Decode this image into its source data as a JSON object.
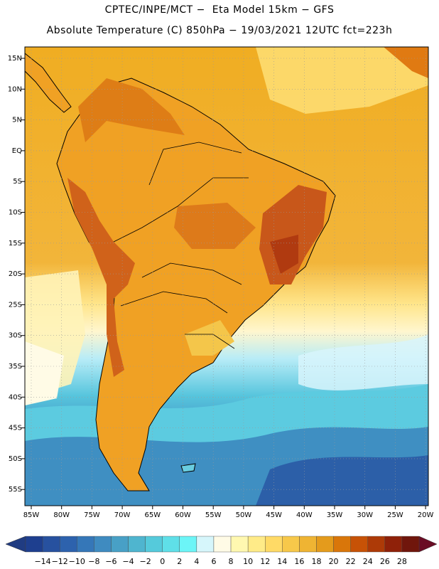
{
  "header": {
    "line1": "CPTEC/INPE/MCT −  Eta Model 15km − GFS",
    "line2": "Absolute Temperature (C) 850hPa − 19/03/2021 12UTC fct=223h"
  },
  "map": {
    "region": "South America",
    "variable": "Absolute Temperature (C) 850hPa",
    "lat_labels": [
      "15N",
      "10N",
      "5N",
      "EQ",
      "5S",
      "10S",
      "15S",
      "20S",
      "25S",
      "30S",
      "35S",
      "40S",
      "45S",
      "50S",
      "55S"
    ],
    "lon_labels": [
      "85W",
      "80W",
      "75W",
      "70W",
      "65W",
      "60W",
      "55W",
      "50W",
      "45W",
      "40W",
      "35W",
      "30W",
      "25W",
      "20W"
    ]
  },
  "colorbar": {
    "ticks": [
      "−14",
      "−12",
      "−10",
      "−8",
      "−6",
      "−4",
      "−2",
      "0",
      "2",
      "4",
      "6",
      "8",
      "10",
      "12",
      "14",
      "16",
      "18",
      "20",
      "22",
      "24",
      "26",
      "28"
    ],
    "colors": [
      "#1e3f8f",
      "#27519f",
      "#2d62ad",
      "#3577b8",
      "#3f8bc0",
      "#48a0c6",
      "#4fb5cf",
      "#55cadb",
      "#5fdfe8",
      "#6cf5f7",
      "#d6f6fb",
      "#fffbe6",
      "#fff8b0",
      "#ffeb88",
      "#ffda66",
      "#f7c84a",
      "#efb433",
      "#e49b1c",
      "#d9760a",
      "#c75206",
      "#ad3a07",
      "#8f2109",
      "#70160c"
    ],
    "low_arrow_color": "#203c82",
    "high_arrow_color": "#6a0c24"
  }
}
